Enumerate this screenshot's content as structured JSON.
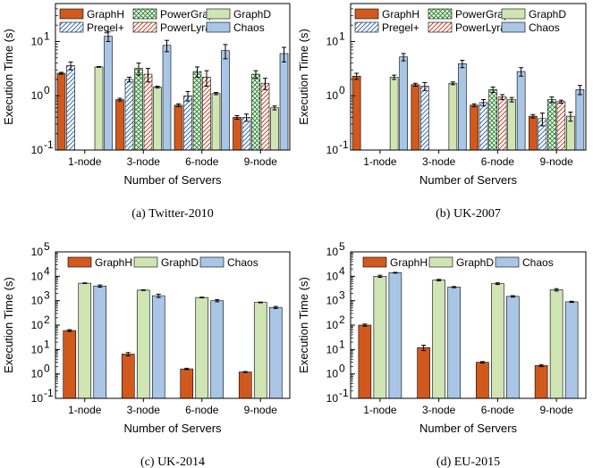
{
  "styles": {
    "GraphH": {
      "color": "#d2591d",
      "pattern": "none"
    },
    "Pregel+": {
      "color": "#3b6fb0",
      "pattern": "diag"
    },
    "PowerGraph": {
      "color": "#2e8b2e",
      "pattern": "cross"
    },
    "PowerLyra": {
      "color": "#c4482b",
      "pattern": "diag"
    },
    "GraphD": {
      "color": "#cfe5b4",
      "pattern": "none"
    },
    "Chaos": {
      "color": "#a9c6e6",
      "pattern": "none"
    }
  },
  "chart_data": [
    {
      "type": "bar",
      "caption": "(a)  Twitter-2010",
      "xlabel": "Number of Servers",
      "ylabel": "Execution Time (s)",
      "yscale": "log",
      "ylim": [
        0.1,
        50
      ],
      "yticks": [
        0.1,
        1,
        10
      ],
      "ytick_labels": [
        "10",
        "10",
        "10"
      ],
      "ytick_exps": [
        "-1",
        "0",
        "1"
      ],
      "categories": [
        "1-node",
        "3-node",
        "6-node",
        "9-node"
      ],
      "legend": {
        "rows": [
          [
            "GraphH",
            "PowerGraph",
            "GraphD"
          ],
          [
            "Pregel+",
            "PowerLyra",
            "Chaos"
          ]
        ]
      },
      "series": [
        {
          "name": "GraphH",
          "values": [
            2.6,
            0.85,
            0.67,
            0.4
          ],
          "errors": [
            0.1,
            0.05,
            0.04,
            0.03
          ]
        },
        {
          "name": "Pregel+",
          "values": [
            3.6,
            2.0,
            1.0,
            0.4
          ],
          "errors": [
            0.6,
            0.2,
            0.2,
            0.06
          ]
        },
        {
          "name": "PowerGraph",
          "values": [
            null,
            3.2,
            2.8,
            2.5
          ],
          "errors": [
            null,
            0.8,
            0.6,
            0.4
          ]
        },
        {
          "name": "PowerLyra",
          "values": [
            null,
            2.5,
            2.2,
            1.7
          ],
          "errors": [
            null,
            0.7,
            0.7,
            0.4
          ]
        },
        {
          "name": "GraphD",
          "values": [
            3.4,
            1.45,
            1.1,
            0.6
          ],
          "errors": [
            0.05,
            0.05,
            0.05,
            0.05
          ]
        },
        {
          "name": "Chaos",
          "values": [
            12.5,
            8.5,
            6.8,
            6.0
          ],
          "errors": [
            2.5,
            2.0,
            2.0,
            1.8
          ]
        }
      ]
    },
    {
      "type": "bar",
      "caption": "(b)  UK-2007",
      "xlabel": "Number of Servers",
      "ylabel": "Execution Time (s)",
      "yscale": "log",
      "ylim": [
        0.1,
        50
      ],
      "yticks": [
        0.1,
        1,
        10
      ],
      "ytick_labels": [
        "10",
        "10",
        "10"
      ],
      "ytick_exps": [
        "-1",
        "0",
        "1"
      ],
      "categories": [
        "1-node",
        "3-node",
        "6-node",
        "9-node"
      ],
      "legend": {
        "rows": [
          [
            "GraphH",
            "PowerGraph",
            "GraphD"
          ],
          [
            "Pregel+",
            "PowerLyra",
            "Chaos"
          ]
        ]
      },
      "series": [
        {
          "name": "GraphH",
          "values": [
            2.3,
            1.6,
            0.67,
            0.42
          ],
          "errors": [
            0.3,
            0.1,
            0.04,
            0.03
          ]
        },
        {
          "name": "Pregel+",
          "values": [
            null,
            1.5,
            0.75,
            0.38
          ],
          "errors": [
            null,
            0.25,
            0.1,
            0.1
          ]
        },
        {
          "name": "PowerGraph",
          "values": [
            null,
            null,
            1.3,
            0.85
          ],
          "errors": [
            null,
            null,
            0.15,
            0.1
          ]
        },
        {
          "name": "PowerLyra",
          "values": [
            null,
            null,
            0.95,
            0.78
          ],
          "errors": [
            null,
            null,
            0.1,
            0.05
          ]
        },
        {
          "name": "GraphD",
          "values": [
            2.2,
            1.7,
            0.85,
            0.42
          ],
          "errors": [
            0.2,
            0.1,
            0.08,
            0.08
          ]
        },
        {
          "name": "Chaos",
          "values": [
            5.2,
            3.9,
            2.8,
            1.3
          ],
          "errors": [
            0.8,
            0.6,
            0.5,
            0.25
          ]
        }
      ]
    },
    {
      "type": "bar",
      "caption": "(c)  UK-2014",
      "xlabel": "Number of Servers",
      "ylabel": "Execution Time (s)",
      "yscale": "log",
      "ylim": [
        0.1,
        100000
      ],
      "yticks": [
        0.1,
        1,
        10,
        100,
        1000,
        10000,
        100000
      ],
      "ytick_labels": [
        "10",
        "10",
        "10",
        "10",
        "10",
        "10",
        "10"
      ],
      "ytick_exps": [
        "-1",
        "0",
        "1",
        "2",
        "3",
        "4",
        "5"
      ],
      "categories": [
        "1-node",
        "3-node",
        "6-node",
        "9-node"
      ],
      "legend": {
        "rows": [
          [
            "GraphH",
            "GraphD",
            "Chaos"
          ]
        ]
      },
      "series": [
        {
          "name": "GraphH",
          "values": [
            60,
            6.5,
            1.6,
            1.2
          ],
          "errors": [
            5,
            1,
            0.1,
            0.05
          ]
        },
        {
          "name": "GraphD",
          "values": [
            5200,
            2700,
            1350,
            850
          ],
          "errors": [
            150,
            80,
            50,
            30
          ]
        },
        {
          "name": "Chaos",
          "values": [
            4000,
            1600,
            1000,
            530
          ],
          "errors": [
            400,
            250,
            100,
            50
          ]
        }
      ]
    },
    {
      "type": "bar",
      "caption": "(d)  EU-2015",
      "xlabel": "Number of Servers",
      "ylabel": "Execution Time (s)",
      "yscale": "log",
      "ylim": [
        0.1,
        100000
      ],
      "yticks": [
        0.1,
        1,
        10,
        100,
        1000,
        10000,
        100000
      ],
      "ytick_labels": [
        "10",
        "10",
        "10",
        "10",
        "10",
        "10",
        "10"
      ],
      "ytick_exps": [
        "-1",
        "0",
        "1",
        "2",
        "3",
        "4",
        "5"
      ],
      "categories": [
        "1-node",
        "3-node",
        "6-node",
        "9-node"
      ],
      "legend": {
        "rows": [
          [
            "GraphH",
            "GraphD",
            "Chaos"
          ]
        ]
      },
      "series": [
        {
          "name": "GraphH",
          "values": [
            100,
            12,
            3.0,
            2.2
          ],
          "errors": [
            10,
            3,
            0.2,
            0.2
          ]
        },
        {
          "name": "GraphD",
          "values": [
            10000,
            7000,
            5000,
            2800
          ],
          "errors": [
            1000,
            500,
            400,
            300
          ]
        },
        {
          "name": "Chaos",
          "values": [
            14000,
            3600,
            1500,
            900
          ],
          "errors": [
            500,
            200,
            100,
            50
          ]
        }
      ]
    }
  ]
}
